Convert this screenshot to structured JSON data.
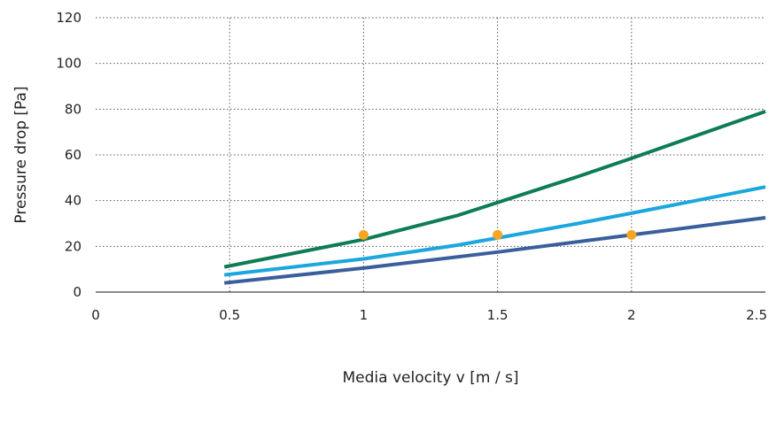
{
  "chart_data": {
    "type": "line",
    "title": "",
    "xlabel": "Media velocity v [m / s]",
    "ylabel": "Pressure drop [Pa]",
    "xlim": [
      0,
      2.5
    ],
    "ylim": [
      0,
      120
    ],
    "x_ticks": [
      {
        "value": 0,
        "label": "0"
      },
      {
        "value": 0.5,
        "label": "0.5"
      },
      {
        "value": 1,
        "label": "1"
      },
      {
        "value": 1.5,
        "label": "1.5"
      },
      {
        "value": 2,
        "label": "2"
      },
      {
        "value": 2.5,
        "label": "2.5"
      }
    ],
    "y_ticks": [
      {
        "value": 0,
        "label": "0"
      },
      {
        "value": 20,
        "label": "20"
      },
      {
        "value": 40,
        "label": "40"
      },
      {
        "value": 60,
        "label": "60"
      },
      {
        "value": 80,
        "label": "80"
      },
      {
        "value": 100,
        "label": "100"
      },
      {
        "value": 120,
        "label": "120"
      }
    ],
    "grid": {
      "vertical": true,
      "horizontal": true,
      "style": "dotted"
    },
    "legend": "none",
    "series": [
      {
        "color": "#0e7c55",
        "x": [
          0.48,
          1.0,
          1.35,
          1.8,
          2.0,
          2.5
        ],
        "y": [
          11,
          23,
          33.5,
          50.5,
          58.5,
          79
        ]
      },
      {
        "color": "#1ba6dd",
        "x": [
          0.48,
          1.0,
          1.35,
          1.8,
          2.0,
          2.5
        ],
        "y": [
          7.5,
          14.5,
          20.5,
          30,
          34.5,
          46
        ]
      },
      {
        "color": "#3b5e9c",
        "x": [
          0.48,
          1.0,
          1.5,
          2.0,
          2.5
        ],
        "y": [
          4,
          10.5,
          17.5,
          25,
          32.5
        ]
      }
    ],
    "markers": {
      "color": "#f5a623",
      "points": [
        {
          "x": 1.0,
          "y": 25
        },
        {
          "x": 1.5,
          "y": 25
        },
        {
          "x": 2.0,
          "y": 25
        }
      ]
    }
  }
}
